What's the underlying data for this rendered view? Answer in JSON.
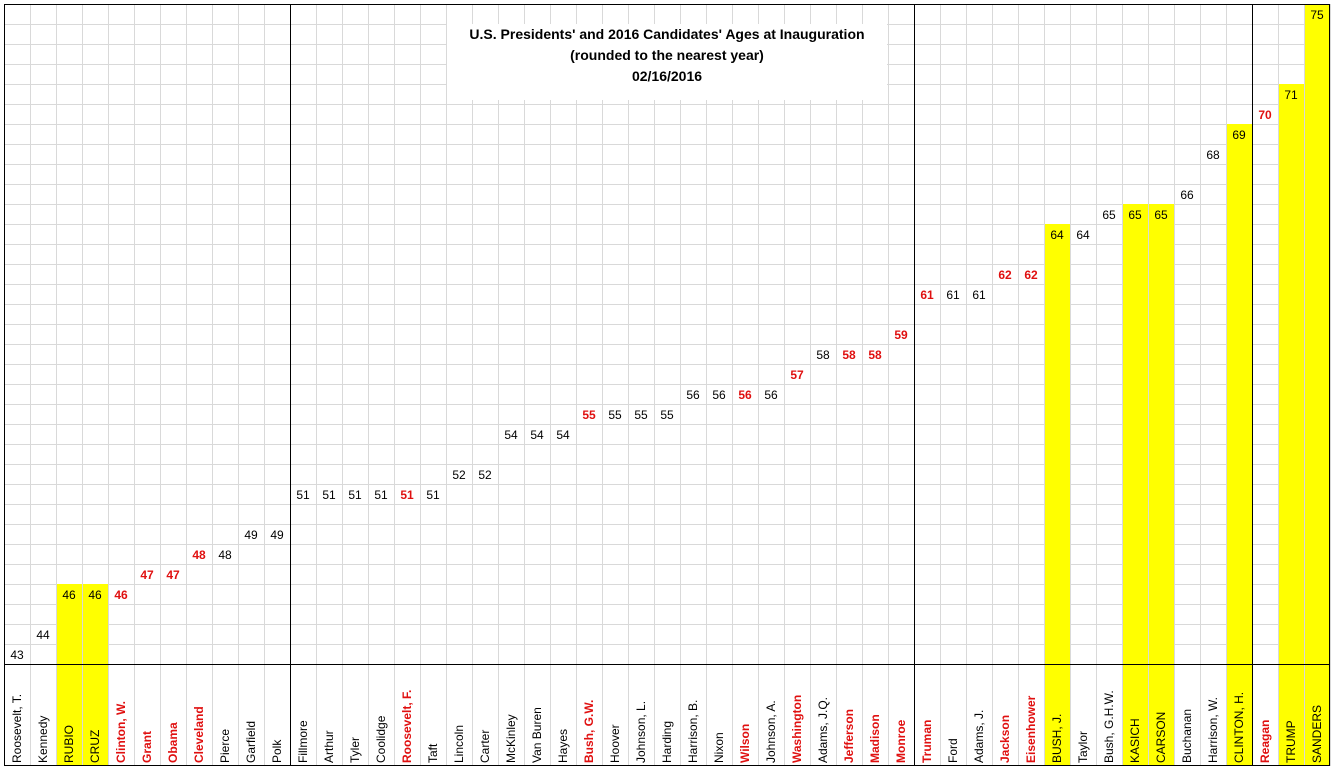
{
  "chart_data": {
    "type": "bar",
    "title_lines": [
      "U.S. Presidents' and 2016 Candidates' Ages at Inauguration",
      "(rounded to the nearest year)",
      "02/16/2016"
    ],
    "categories": [
      "Roosevelt, T.",
      "Kennedy",
      "RUBIO",
      "CRUZ",
      "Clinton, W.",
      "Grant",
      "Obama",
      "Cleveland",
      "Pierce",
      "Garfield",
      "Polk",
      "Fillmore",
      "Arthur",
      "Tyler",
      "Coolidge",
      "Roosevelt, F.",
      "Taft",
      "Lincoln",
      "Carter",
      "McKinley",
      "Van Buren",
      "Hayes",
      "Bush, G.W.",
      "Hoover",
      "Johnson, L.",
      "Harding",
      "Harrison, B.",
      "Nixon",
      "Wilson",
      "Johnson, A.",
      "Washington",
      "Adams, J.Q.",
      "Jefferson",
      "Madison",
      "Monroe",
      "Truman",
      "Ford",
      "Adams, J.",
      "Jackson",
      "Eisenhower",
      "BUSH, J.",
      "Taylor",
      "Bush, G.H.W.",
      "KASICH",
      "CARSON",
      "Buchanan",
      "Harrison, W.",
      "CLINTON, H.",
      "Reagan",
      "TRUMP",
      "SANDERS"
    ],
    "values": [
      43,
      44,
      46,
      46,
      46,
      47,
      47,
      48,
      48,
      49,
      49,
      51,
      51,
      51,
      51,
      51,
      51,
      52,
      52,
      54,
      54,
      54,
      55,
      55,
      55,
      55,
      56,
      56,
      56,
      56,
      57,
      58,
      58,
      58,
      59,
      61,
      61,
      61,
      62,
      62,
      64,
      64,
      65,
      65,
      65,
      66,
      68,
      69,
      70,
      71,
      75
    ],
    "groups": [
      "other",
      "other",
      "candidate",
      "candidate",
      "two_term",
      "two_term",
      "two_term",
      "two_term",
      "other",
      "other",
      "other",
      "other",
      "other",
      "other",
      "other",
      "two_term",
      "other",
      "other",
      "other",
      "other",
      "other",
      "other",
      "two_term",
      "other",
      "other",
      "other",
      "other",
      "other",
      "two_term",
      "other",
      "two_term",
      "other",
      "two_term",
      "two_term",
      "two_term",
      "two_term",
      "other",
      "other",
      "two_term",
      "two_term",
      "candidate",
      "other",
      "other",
      "candidate",
      "candidate",
      "other",
      "other",
      "candidate",
      "two_term",
      "candidate",
      "candidate"
    ],
    "colors": {
      "candidate_fill": "#ffff00",
      "two_term_text": "#e01010",
      "other_text": "#000000",
      "grid": "#d9d9d9",
      "divider": "#000000"
    },
    "ylim": [
      42,
      75
    ],
    "grid": true,
    "legend": "none"
  }
}
